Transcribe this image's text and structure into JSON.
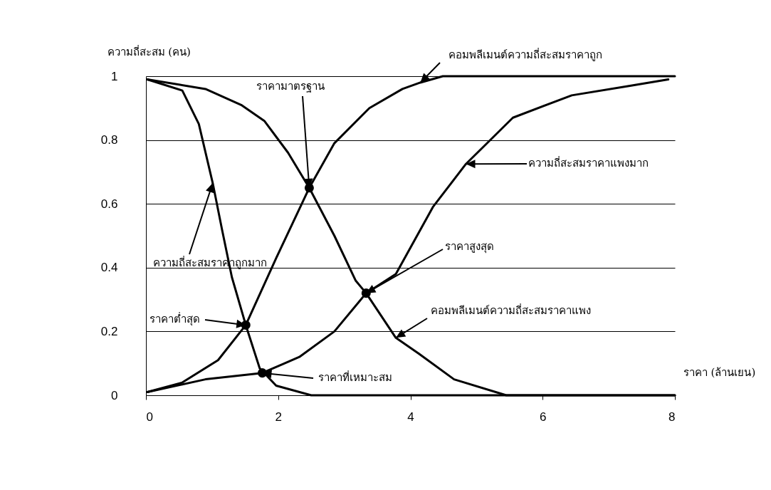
{
  "chart_data": {
    "type": "line",
    "xlabel": "ราคา (ล้านเยน)",
    "ylabel": "ความถี่สะสม (คน)",
    "xlim": [
      0,
      8
    ],
    "xticks": [
      0,
      2,
      4,
      6,
      8
    ],
    "ylim": [
      0,
      1
    ],
    "yticks": [
      0,
      0.2,
      0.4,
      0.6,
      0.8,
      1
    ],
    "grid": "y",
    "line_style": "solid",
    "marker": "none",
    "series": [
      {
        "color": "#000000",
        "x": [
          0.02,
          0.55,
          0.8,
          1.01,
          1.15,
          1.3,
          1.51,
          1.72,
          1.97,
          2.5,
          8
        ],
        "values": [
          0.99,
          0.955,
          0.85,
          0.665,
          0.52,
          0.37,
          0.22,
          0.085,
          0.03,
          0,
          0
        ]
      },
      {
        "color": "#000000",
        "x": [
          0.02,
          0.9,
          1.44,
          1.79,
          2.15,
          2.47,
          2.85,
          3.17,
          3.33,
          3.78,
          4.13,
          4.66,
          5.45,
          8
        ],
        "values": [
          0.99,
          0.96,
          0.91,
          0.86,
          0.76,
          0.65,
          0.5,
          0.36,
          0.32,
          0.18,
          0.13,
          0.05,
          0,
          0
        ]
      },
      {
        "color": "#000000",
        "x": [
          0.02,
          0.55,
          1.09,
          1.51,
          1.97,
          2.47,
          2.85,
          3.38,
          3.88,
          4.15,
          4.49,
          8
        ],
        "values": [
          0.01,
          0.04,
          0.11,
          0.22,
          0.43,
          0.65,
          0.79,
          0.9,
          0.96,
          0.98,
          1,
          1
        ]
      },
      {
        "color": "#000000",
        "x": [
          0.02,
          0.9,
          1.76,
          2.32,
          2.85,
          3.33,
          3.78,
          4.34,
          4.84,
          5.55,
          6.44,
          7.32,
          7.9
        ],
        "values": [
          0.01,
          0.05,
          0.07,
          0.12,
          0.2,
          0.32,
          0.38,
          0.59,
          0.725,
          0.87,
          0.94,
          0.97,
          0.99
        ]
      },
      {
        "type": "scatter",
        "marker": "circle",
        "color": "#000000",
        "x": [
          1.51,
          1.76,
          2.47,
          3.33
        ],
        "values": [
          0.22,
          0.07,
          0.65,
          0.32
        ]
      }
    ],
    "annotations": [
      {
        "text": "คอมพลีเมนต์ความถี่สะสมราคาถูก",
        "x": 4.15,
        "y": 0.98
      },
      {
        "text": "ราคามาตรฐาน",
        "x": 2.47,
        "y": 0.65
      },
      {
        "text": "ความถี่สะสมราคาแพงมาก",
        "x": 4.84,
        "y": 0.725
      },
      {
        "text": "ความถี่สะสมราคาถูกมาก",
        "x": 1.01,
        "y": 0.665
      },
      {
        "text": "ราคาสูงสุด",
        "x": 3.33,
        "y": 0.32
      },
      {
        "text": "คอมพลีเมนต์ความถี่สะสมราคาแพง",
        "x": 3.78,
        "y": 0.18
      },
      {
        "text": "ราคาต่ำสุด",
        "x": 1.51,
        "y": 0.22
      },
      {
        "text": "ราคาที่เหมาะสม",
        "x": 1.76,
        "y": 0.07
      }
    ]
  }
}
